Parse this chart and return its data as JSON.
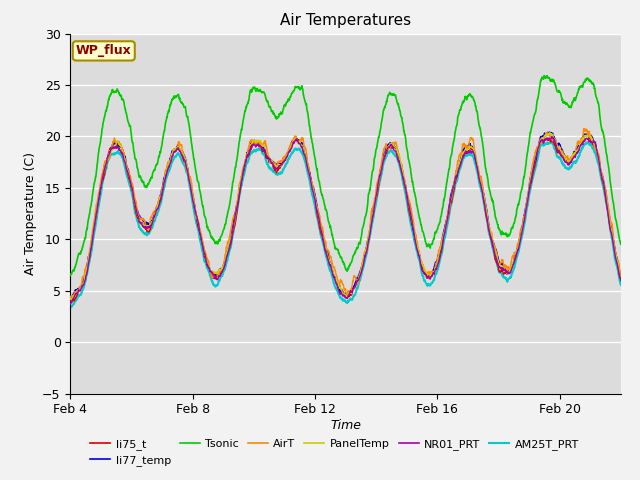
{
  "title": "Air Temperatures",
  "xlabel": "Time",
  "ylabel": "Air Temperature (C)",
  "ylim": [
    -5,
    30
  ],
  "xlim_days": [
    4,
    22
  ],
  "x_ticks": [
    4,
    8,
    12,
    16,
    20
  ],
  "x_tick_labels": [
    "Feb 4",
    "Feb 8",
    "Feb 12",
    "Feb 16",
    "Feb 20"
  ],
  "annotation_text": "WP_flux",
  "annotation_color": "#8B0000",
  "annotation_bg": "#FFFFCC",
  "fig_bg": "#F2F2F2",
  "plot_bg": "#DCDCDC",
  "grid_color": "#FFFFFF",
  "grid_lw": 1.0,
  "series": [
    {
      "label": "li75_t",
      "color": "#DD0000",
      "lw": 1.0,
      "zorder": 4
    },
    {
      "label": "li77_temp",
      "color": "#0000DD",
      "lw": 1.0,
      "zorder": 4
    },
    {
      "label": "Tsonic",
      "color": "#00CC00",
      "lw": 1.2,
      "zorder": 3
    },
    {
      "label": "AirT",
      "color": "#FF8800",
      "lw": 1.0,
      "zorder": 4
    },
    {
      "label": "PanelTemp",
      "color": "#CCCC00",
      "lw": 1.0,
      "zorder": 4
    },
    {
      "label": "NR01_PRT",
      "color": "#AA00AA",
      "lw": 1.0,
      "zorder": 4
    },
    {
      "label": "AM25T_PRT",
      "color": "#00CCCC",
      "lw": 1.5,
      "zorder": 2
    }
  ],
  "title_fontsize": 11,
  "label_fontsize": 9,
  "tick_fontsize": 9,
  "legend_fontsize": 8,
  "annotation_fontsize": 9
}
